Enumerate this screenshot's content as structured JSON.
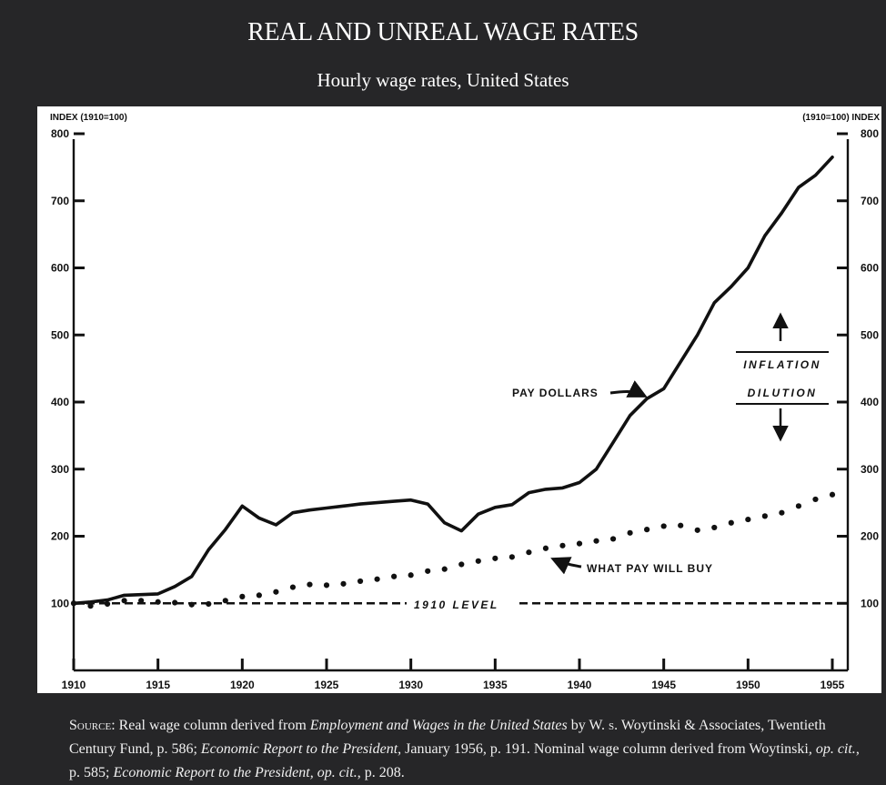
{
  "page": {
    "title": "REAL AND UNREAL WAGE RATES",
    "subtitle": "Hourly wage rates, United States",
    "source": {
      "lead": "Source",
      "t1": ": Real wage column derived from ",
      "i1": "Employment and Wages in the United States",
      "t2": " by W. ",
      "s1": "s",
      "t3": ". Woytinski & Associates, Twentieth Century Fund, p. 586; ",
      "i2": "Economic Report to the President",
      "t4": ", January 1956, p. 191. Nominal wage column derived from Woytinski, ",
      "i3": "op. cit.",
      "t5": ", p. 585; ",
      "i4": "Economic Report to the President, op. cit.",
      "t6": ", p. 208."
    }
  },
  "chart_data": {
    "type": "line",
    "left_axis_label": "INDEX (1910=100)",
    "right_axis_label": "(1910=100) INDEX",
    "xlim": [
      1910,
      1955
    ],
    "ylim": [
      0,
      800
    ],
    "x_ticks": [
      1910,
      1915,
      1920,
      1925,
      1930,
      1935,
      1940,
      1945,
      1950,
      1955
    ],
    "y_ticks": [
      100,
      200,
      300,
      400,
      500,
      600,
      700,
      800
    ],
    "series": [
      {
        "name": "PAY DOLLARS",
        "style": "solid",
        "x": [
          1910,
          1911,
          1912,
          1913,
          1914,
          1915,
          1916,
          1917,
          1918,
          1919,
          1920,
          1921,
          1922,
          1923,
          1924,
          1925,
          1926,
          1927,
          1928,
          1929,
          1930,
          1931,
          1932,
          1933,
          1934,
          1935,
          1936,
          1937,
          1938,
          1939,
          1940,
          1941,
          1942,
          1943,
          1944,
          1945,
          1946,
          1947,
          1948,
          1949,
          1950,
          1951,
          1952,
          1953,
          1954,
          1955
        ],
        "y": [
          100,
          102,
          105,
          112,
          113,
          114,
          125,
          140,
          180,
          210,
          245,
          227,
          217,
          235,
          239,
          242,
          245,
          248,
          250,
          252,
          254,
          248,
          220,
          208,
          233,
          243,
          247,
          265,
          270,
          272,
          280,
          300,
          340,
          380,
          405,
          420,
          460,
          500,
          548,
          572,
          600,
          648,
          682,
          720,
          738,
          765
        ]
      },
      {
        "name": "WHAT PAY WILL BUY",
        "style": "dotted",
        "x": [
          1910,
          1911,
          1912,
          1913,
          1914,
          1915,
          1916,
          1917,
          1918,
          1919,
          1920,
          1921,
          1922,
          1923,
          1924,
          1925,
          1926,
          1927,
          1928,
          1929,
          1930,
          1931,
          1932,
          1933,
          1934,
          1935,
          1936,
          1937,
          1938,
          1939,
          1940,
          1941,
          1942,
          1943,
          1944,
          1945,
          1946,
          1947,
          1948,
          1949,
          1950,
          1951,
          1952,
          1953,
          1954,
          1955
        ],
        "y": [
          100,
          96,
          99,
          104,
          104,
          102,
          101,
          98,
          99,
          104,
          110,
          112,
          117,
          124,
          128,
          127,
          129,
          133,
          136,
          140,
          142,
          148,
          151,
          158,
          163,
          167,
          169,
          176,
          182,
          186,
          189,
          193,
          196,
          205,
          210,
          215,
          216,
          209,
          213,
          220,
          225,
          230,
          235,
          245,
          255,
          262
        ]
      },
      {
        "name": "1910 LEVEL",
        "style": "dashed",
        "x": [
          1910,
          1955
        ],
        "y": [
          100,
          100
        ]
      }
    ],
    "annotations": {
      "pay_dollars": "PAY DOLLARS",
      "what_pay_will_buy": "WHAT PAY WILL BUY",
      "level_1910": "1910 LEVEL",
      "inflation": "INFLATION",
      "dilution": "DILUTION"
    },
    "grid": false,
    "legend": "none"
  }
}
